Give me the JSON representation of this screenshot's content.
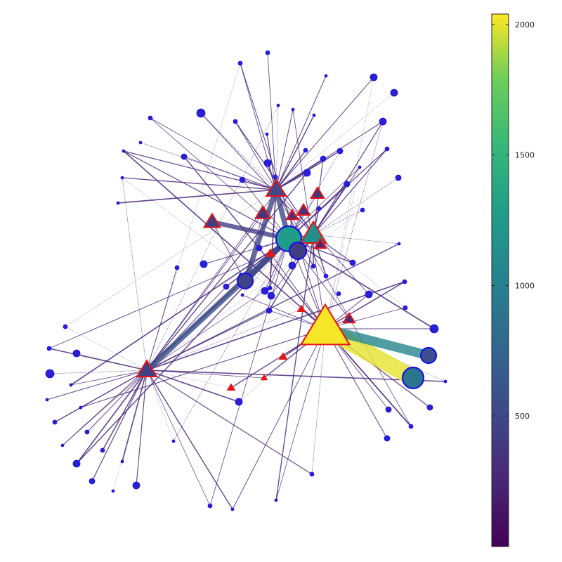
{
  "graph": {
    "node_style": {
      "circle_fill_color": "#2a1fd2",
      "circle_stroke_color": "#1a12e6",
      "triangle_stroke_color": "#e61414",
      "small_triangle_fill_color": "#e61414"
    },
    "edge_color": "#4a2a7a",
    "hubs": [
      "h_center",
      "h_left",
      "h_yellow",
      "h_top",
      "h_tri2"
    ],
    "nodes": [
      {
        "id": "h_yellow",
        "shape": "triangle",
        "value": 2030
      },
      {
        "id": "h_center",
        "shape": "circle",
        "value": 1280
      },
      {
        "id": "h_tri2",
        "shape": "triangle",
        "value": 1140
      },
      {
        "id": "c_sw",
        "shape": "circle",
        "value": 900
      },
      {
        "id": "c_e",
        "shape": "circle",
        "value": 560
      },
      {
        "id": "c_b1",
        "shape": "circle",
        "value": 470
      },
      {
        "id": "c_b2",
        "shape": "circle",
        "value": 420
      },
      {
        "id": "h_left",
        "shape": "triangle",
        "value": 460
      },
      {
        "id": "h_top",
        "shape": "triangle",
        "value": 520
      },
      {
        "id": "t_a",
        "shape": "triangle",
        "value": 430
      },
      {
        "id": "t_b",
        "shape": "triangle",
        "value": 380
      },
      {
        "id": "t_c",
        "shape": "triangle",
        "value": 360
      },
      {
        "id": "t_d",
        "shape": "triangle",
        "value": 340
      },
      {
        "id": "t_e",
        "shape": "triangle",
        "value": 320
      },
      {
        "id": "t_f",
        "shape": "triangle",
        "value": 300
      },
      {
        "id": "t_g",
        "shape": "triangle",
        "value": 260
      }
    ],
    "heavy_edges": [
      {
        "from": "h_yellow",
        "to": "c_sw",
        "value": 2000
      },
      {
        "from": "h_yellow",
        "to": "c_e",
        "value": 1050
      },
      {
        "from": "h_center",
        "to": "h_left",
        "value": 560
      },
      {
        "from": "h_center",
        "to": "h_top",
        "value": 500
      },
      {
        "from": "h_center",
        "to": "c_b1",
        "value": 480
      },
      {
        "from": "h_top",
        "to": "c_b1",
        "value": 460
      },
      {
        "from": "h_center",
        "to": "t_a",
        "value": 420
      },
      {
        "from": "h_center",
        "to": "c_b2",
        "value": 400
      }
    ]
  },
  "colorbar": {
    "colormap": "viridis",
    "min": 0,
    "max": 2040,
    "ticks": [
      "500",
      "1000",
      "1500",
      "2000"
    ]
  }
}
